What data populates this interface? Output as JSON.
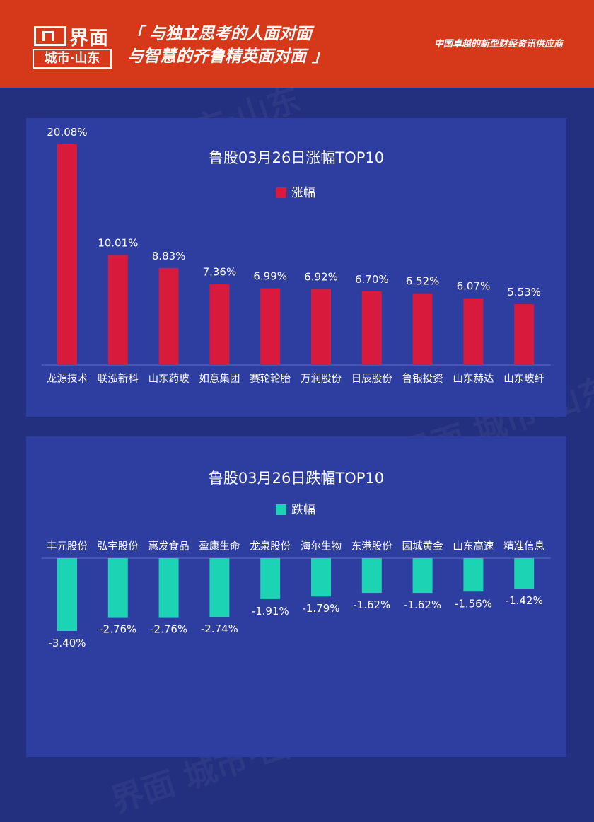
{
  "header": {
    "brand": "界面",
    "sub_brand": "城市·山东",
    "slogan_line1": "「 与独立思考的人面对面",
    "slogan_line2": "与智慧的齐鲁精英面对面 」",
    "tagline": "中国卓越的新型财经资讯供应商",
    "watermark": "界面 城市·山东"
  },
  "chart_data": [
    {
      "type": "bar",
      "title": "鲁股03月26日涨幅TOP10",
      "categories": [
        "龙源技术",
        "联泓新科",
        "山东药玻",
        "如意集团",
        "赛轮轮胎",
        "万润股份",
        "日辰股份",
        "鲁银投资",
        "山东赫达",
        "山东玻纤"
      ],
      "series": [
        {
          "name": "涨幅",
          "values": [
            20.08,
            10.01,
            8.83,
            7.36,
            6.99,
            6.92,
            6.7,
            6.52,
            6.07,
            5.53
          ],
          "labels": [
            "20.08%",
            "10.01%",
            "8.83%",
            "7.36%",
            "6.99%",
            "6.92%",
            "6.70%",
            "6.52%",
            "6.07%",
            "5.53%"
          ],
          "color": "#d81b3c"
        }
      ],
      "ylim": [
        0,
        20.08
      ],
      "legend": "top-center",
      "grid": false
    },
    {
      "type": "bar",
      "title": "鲁股03月26日跌幅TOP10",
      "categories": [
        "丰元股份",
        "弘宇股份",
        "惠发食品",
        "盈康生命",
        "龙泉股份",
        "海尔生物",
        "东港股份",
        "园城黄金",
        "山东高速",
        "精准信息"
      ],
      "series": [
        {
          "name": "跌幅",
          "values": [
            -3.4,
            -2.76,
            -2.76,
            -2.74,
            -1.91,
            -1.79,
            -1.62,
            -1.62,
            -1.56,
            -1.42
          ],
          "labels": [
            "-3.40%",
            "-2.76%",
            "-2.76%",
            "-2.74%",
            "-1.91%",
            "-1.79%",
            "-1.62%",
            "-1.62%",
            "-1.56%",
            "-1.42%"
          ],
          "color": "#1cd3b3"
        }
      ],
      "ylim": [
        -3.4,
        0
      ],
      "legend": "top-center",
      "grid": false
    }
  ]
}
